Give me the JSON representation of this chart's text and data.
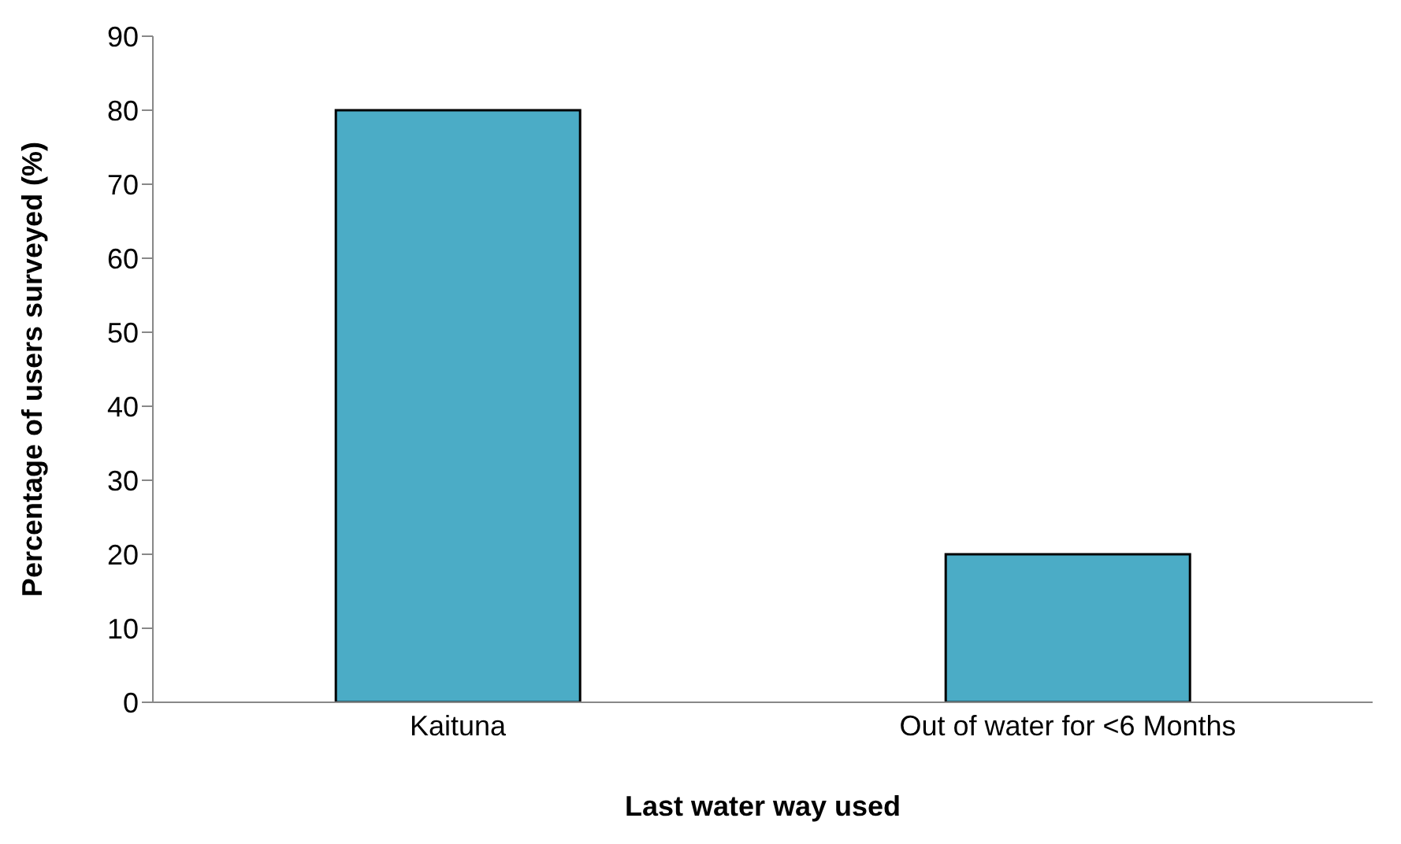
{
  "chart_data": {
    "type": "bar",
    "xlabel": "Last water way used",
    "ylabel": "Percentage of users surveyed (%)",
    "categories": [
      "Kaituna",
      "Out of water for <6 Months"
    ],
    "values": [
      80,
      20
    ],
    "color": "#4bacc6",
    "ylim": [
      0,
      90
    ],
    "yticks": [
      0,
      10,
      20,
      30,
      40,
      50,
      60,
      70,
      80,
      90
    ],
    "grid": false,
    "legend": false
  }
}
